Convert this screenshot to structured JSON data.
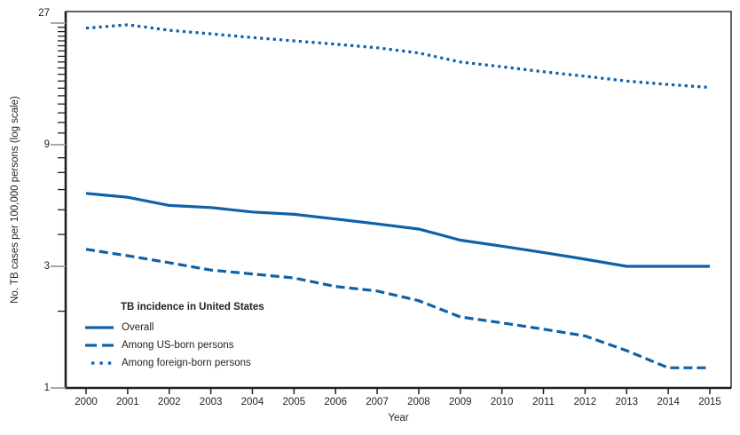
{
  "figure": {
    "colors": {
      "background": "#ffffff",
      "accent_blue": "#0e61a8",
      "axis_black": "#231f20",
      "major_tick_gray": "#9b9b9b"
    }
  },
  "chart_data": {
    "type": "line",
    "title": "",
    "xlabel": "Year",
    "ylabel": "No. TB cases per 100,000 persons (log scale)",
    "x": [
      2000,
      2001,
      2002,
      2003,
      2004,
      2005,
      2006,
      2007,
      2008,
      2009,
      2010,
      2011,
      2012,
      2013,
      2014,
      2015
    ],
    "y_scale": "log",
    "ylim": [
      1,
      27
    ],
    "y_ticks": [
      1,
      3,
      9,
      27
    ],
    "y_minor_ticks": [
      2,
      4,
      5,
      6,
      7,
      8,
      10,
      11,
      12,
      13,
      14,
      15,
      16,
      17,
      18,
      19,
      20,
      21,
      22,
      23,
      24,
      25,
      26
    ],
    "grid": false,
    "legend": {
      "title": "TB incidence in United States",
      "position": "inside-lower-left"
    },
    "series": [
      {
        "name": "Overall",
        "style": "solid",
        "values": [
          5.8,
          5.6,
          5.2,
          5.1,
          4.9,
          4.8,
          4.6,
          4.4,
          4.2,
          3.8,
          3.6,
          3.4,
          3.2,
          3.0,
          3.0,
          3.0
        ]
      },
      {
        "name": "Among US-born persons",
        "style": "dashed",
        "values": [
          3.5,
          3.3,
          3.1,
          2.9,
          2.8,
          2.7,
          2.5,
          2.4,
          2.2,
          1.9,
          1.8,
          1.7,
          1.6,
          1.4,
          1.2,
          1.2
        ]
      },
      {
        "name": "Among foreign-born persons",
        "style": "dotted",
        "values": [
          25.8,
          26.6,
          25.3,
          24.5,
          23.7,
          23.0,
          22.3,
          21.6,
          20.6,
          19.0,
          18.2,
          17.4,
          16.7,
          16.0,
          15.5,
          15.1
        ]
      }
    ]
  }
}
